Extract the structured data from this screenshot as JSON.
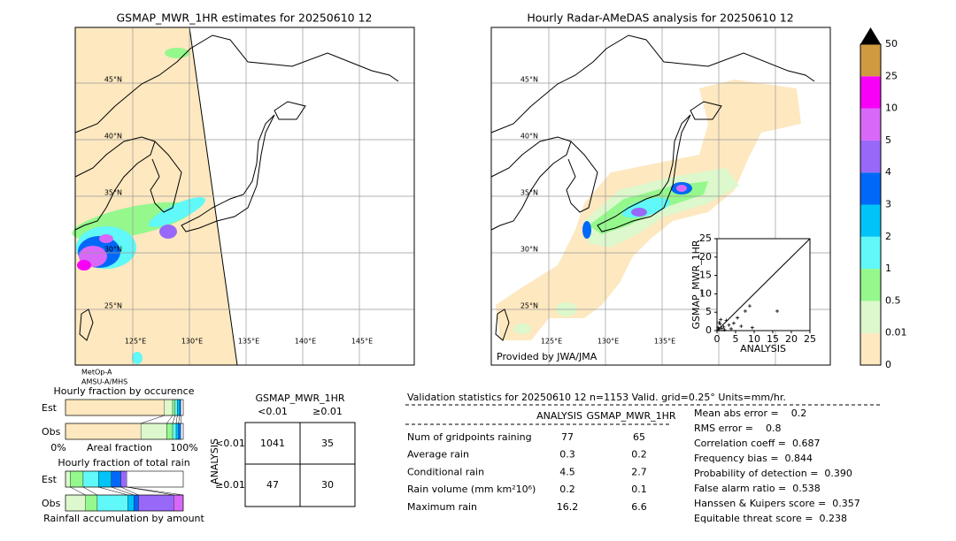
{
  "map_left": {
    "title": "GSMAP_MWR_1HR estimates for 20250610 12",
    "lat_labels": [
      "45°N",
      "40°N",
      "35°N",
      "30°N",
      "25°N"
    ],
    "lon_labels": [
      "125°E",
      "130°E",
      "135°E",
      "140°E",
      "145°E"
    ],
    "satellite": [
      "MetOp-A",
      "AMSU-A/MHS"
    ]
  },
  "map_right": {
    "title": "Hourly Radar-AMeDAS analysis for 20250610 12",
    "lat_labels": [
      "45°N",
      "40°N",
      "35°N",
      "30°N",
      "25°N"
    ],
    "lon_labels": [
      "125°E",
      "130°E",
      "135°E"
    ],
    "credit": "Provided by JWA/JMA"
  },
  "colorbar": {
    "labels": [
      "0",
      "0.01",
      "0.5",
      "1",
      "2",
      "3",
      "4",
      "5",
      "10",
      "25",
      "50"
    ],
    "colors": [
      "#fde8c0",
      "#dcf8cc",
      "#94f88c",
      "#60f8f8",
      "#00c4f8",
      "#0068f8",
      "#9868f8",
      "#d868f8",
      "#f800f8",
      "#d09a40"
    ]
  },
  "scatter": {
    "xlabel": "ANALYSIS",
    "ylabel": "GSMAP_MWR_1HR",
    "xlim": [
      0,
      25
    ],
    "ylim": [
      0,
      25
    ],
    "xticks": [
      0,
      5,
      10,
      15,
      20,
      25
    ],
    "yticks": [
      0,
      5,
      10,
      15,
      20,
      25
    ],
    "x": [
      16.2,
      8.8,
      7.6,
      5.5,
      4.5,
      3.2,
      2.5,
      1.8,
      1.2,
      0.8,
      0.5,
      0.3,
      2.0,
      6.5,
      9.5,
      1.0,
      0.6,
      3.8
    ],
    "y": [
      5.3,
      6.7,
      5.3,
      3.5,
      2.0,
      1.5,
      2.8,
      1.0,
      0.6,
      1.8,
      0.3,
      0.8,
      0.2,
      1.2,
      0.8,
      3.0,
      2.2,
      0.5
    ]
  },
  "occurrence": {
    "title": "Hourly fraction by occurence",
    "rows": [
      "Est",
      "Obs"
    ],
    "axis": [
      "0%",
      "Areal fraction",
      "100%"
    ],
    "segments": [
      [
        84,
        7,
        2,
        2,
        2,
        1
      ],
      [
        64,
        22,
        5,
        3,
        2,
        2
      ]
    ]
  },
  "total": {
    "title": "Hourly fraction of total rain",
    "rows": [
      "Est",
      "Obs"
    ],
    "footer": "Rainfall accumulation by amount",
    "segments": [
      [
        4,
        11,
        13,
        11,
        8,
        5,
        0
      ],
      [
        17,
        10,
        26,
        5,
        4,
        30,
        8
      ]
    ]
  },
  "contingency": {
    "title": "GSMAP_MWR_1HR",
    "col_headers": [
      "<0.01",
      "≥0.01"
    ],
    "row_axis": "ANALYSIS",
    "row_headers": [
      "<0.01",
      "≥0.01"
    ],
    "cells": [
      [
        1041,
        35
      ],
      [
        47,
        30
      ]
    ]
  },
  "stats": {
    "title": "Validation statistics for 20250610 12  n=1153 Valid. grid=0.25° Units=mm/hr.",
    "columns": [
      "ANALYSIS",
      "GSMAP_MWR_1HR"
    ],
    "rows": [
      {
        "label": "Num of gridpoints raining",
        "values": [
          77,
          65
        ]
      },
      {
        "label": "Average rain",
        "values": [
          0.3,
          0.2
        ]
      },
      {
        "label": "Conditional rain",
        "values": [
          4.5,
          2.7
        ]
      },
      {
        "label": "Rain volume (mm km²10⁶)",
        "values": [
          0.2,
          0.1
        ]
      },
      {
        "label": "Maximum rain",
        "values": [
          16.2,
          6.6
        ]
      }
    ],
    "scores": [
      "Mean abs error =    0.2",
      "RMS error =    0.8",
      "Correlation coeff =  0.687",
      "Frequency bias =  0.844",
      "Probability of detection =  0.390",
      "False alarm ratio =  0.538",
      "Hanssen & Kuipers score =  0.357",
      "Equitable threat score =  0.238"
    ]
  }
}
